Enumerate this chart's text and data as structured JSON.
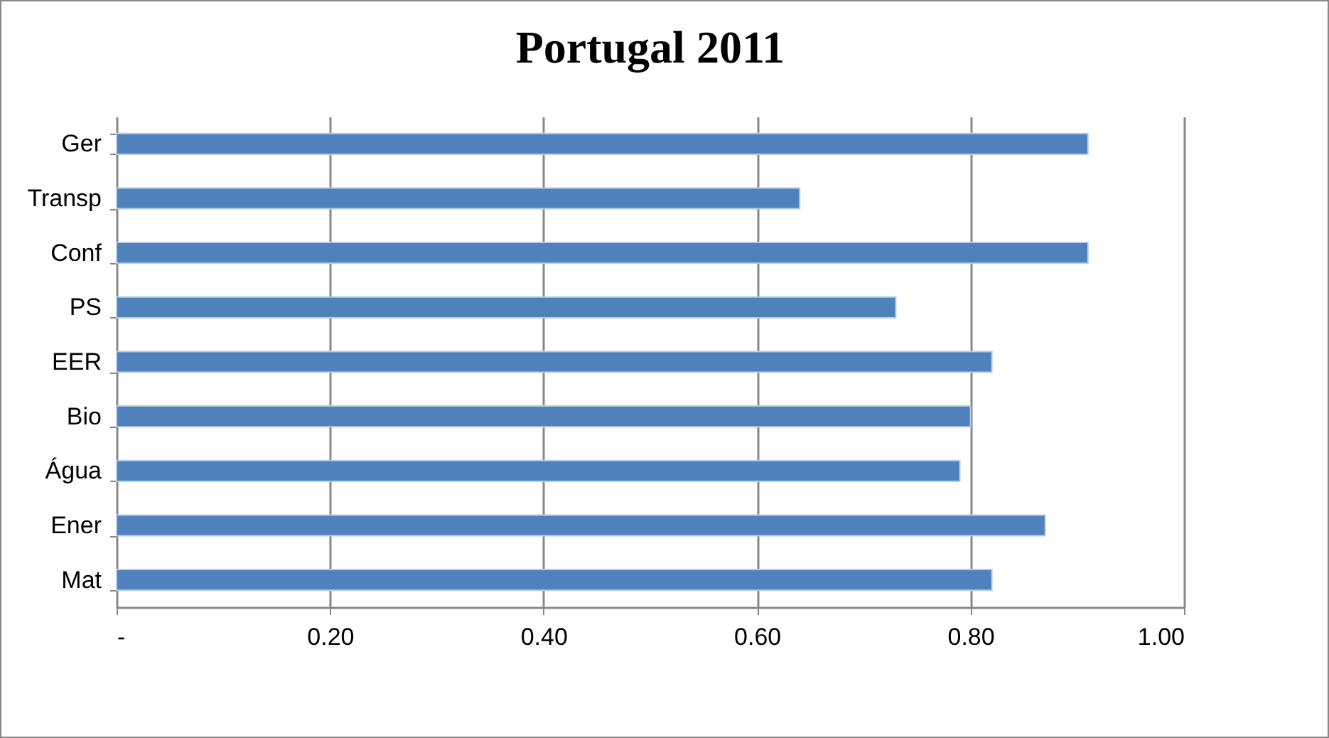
{
  "chart_data": {
    "type": "bar",
    "orientation": "horizontal",
    "title": "Portugal 2011",
    "categories": [
      "Ger",
      "Transp",
      "Conf",
      "PS",
      "EER",
      "Bio",
      "Água",
      "Ener",
      "Mat"
    ],
    "values": [
      0.91,
      0.64,
      0.91,
      0.73,
      0.82,
      0.8,
      0.79,
      0.87,
      0.82
    ],
    "color": "#4f81bd",
    "xlim": [
      0,
      1
    ],
    "xticks": [
      {
        "value": 0,
        "label": "-"
      },
      {
        "value": 0.2,
        "label": "0.20"
      },
      {
        "value": 0.4,
        "label": "0.40"
      },
      {
        "value": 0.6,
        "label": "0.60"
      },
      {
        "value": 0.8,
        "label": "0.80"
      },
      {
        "value": 1,
        "label": "1.00"
      }
    ],
    "grid": "x"
  }
}
